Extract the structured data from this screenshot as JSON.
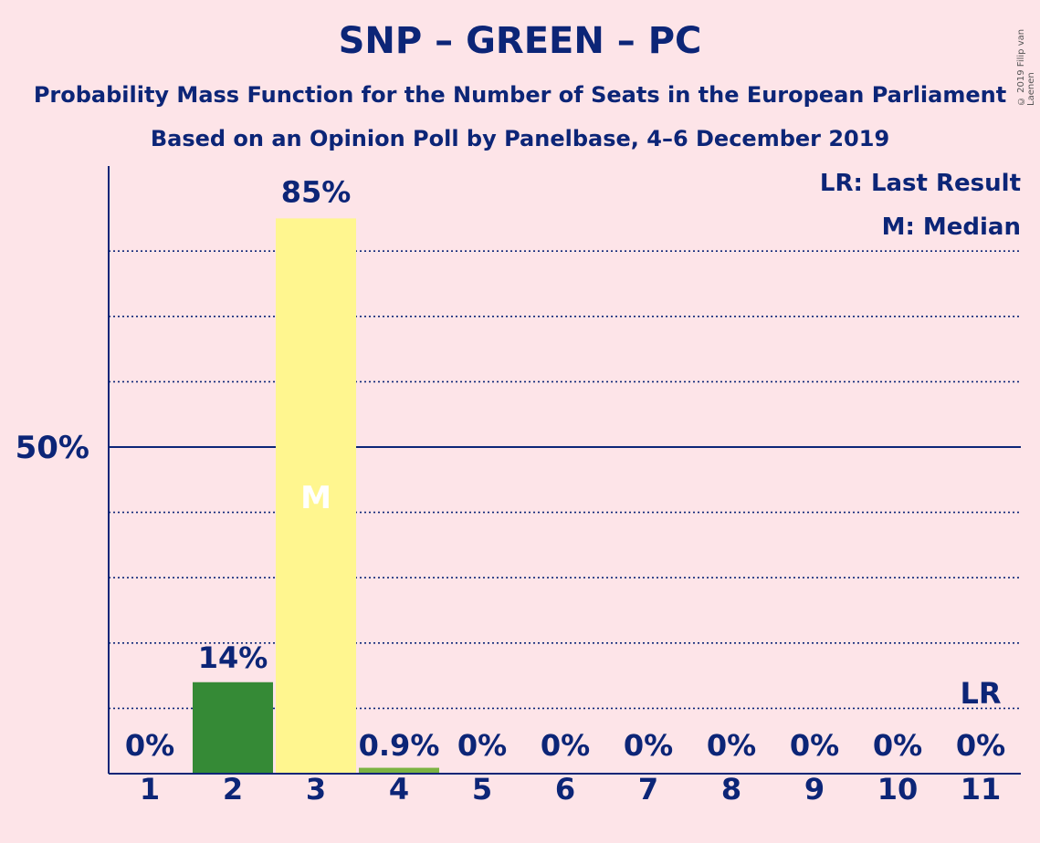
{
  "title": "SNP – GREEN – PC",
  "subtitle1": "Probability Mass Function for the Number of Seats in the European Parliament",
  "subtitle2": "Based on an Opinion Poll by Panelbase, 4–6 December 2019",
  "copyright": "© 2019 Filip van Laenen",
  "legend": {
    "last_result": "LR: Last Result",
    "median": "M: Median"
  },
  "colors": {
    "background": "#fde4e8",
    "text": "#0c2577",
    "bars": [
      "#fde4e8",
      "#358a36",
      "#fff68f",
      "#7cb342",
      "#fde4e8",
      "#fde4e8",
      "#fde4e8",
      "#fde4e8",
      "#fde4e8",
      "#fde4e8",
      "#fde4e8"
    ]
  },
  "chart_data": {
    "type": "bar",
    "categories": [
      "1",
      "2",
      "3",
      "4",
      "5",
      "6",
      "7",
      "8",
      "9",
      "10",
      "11"
    ],
    "values": [
      0,
      14,
      85,
      0.9,
      0,
      0,
      0,
      0,
      0,
      0,
      0
    ],
    "value_labels": [
      "0%",
      "14%",
      "85%",
      "0.9%",
      "0%",
      "0%",
      "0%",
      "0%",
      "0%",
      "0%",
      "0%"
    ],
    "ylim": [
      0,
      93
    ],
    "y_tick_label": "50%",
    "y_tick_value": 50,
    "gridlines": [
      10,
      20,
      30,
      40,
      60,
      70,
      80
    ],
    "median_category": "3",
    "median_marker": "M",
    "last_result_category": "11",
    "last_result_marker": "LR"
  }
}
